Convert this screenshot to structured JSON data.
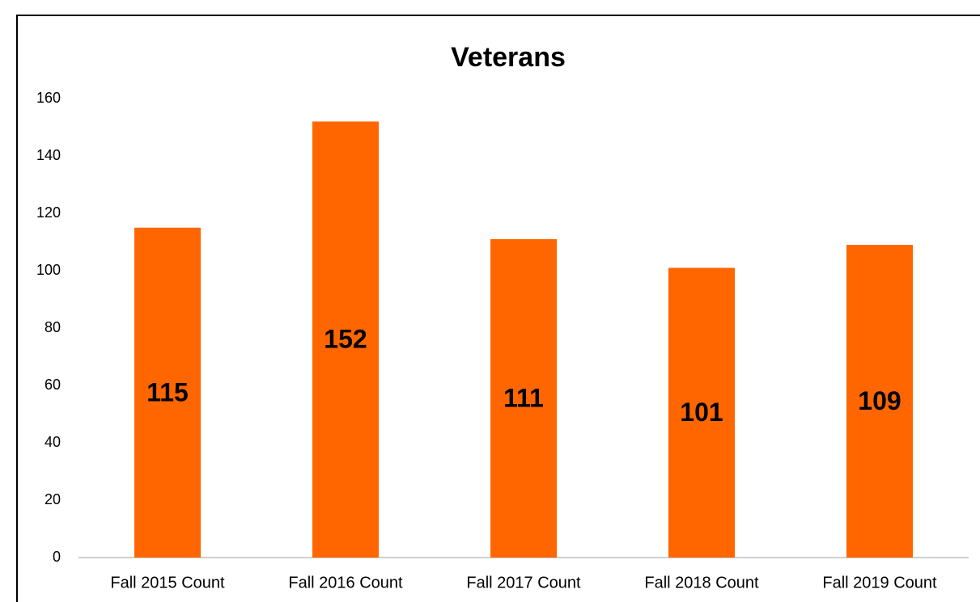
{
  "chart_data": {
    "type": "bar",
    "title": "Veterans",
    "categories": [
      "Fall 2015 Count",
      "Fall 2016 Count",
      "Fall 2017 Count",
      "Fall 2018 Count",
      "Fall 2019 Count"
    ],
    "values": [
      115,
      152,
      111,
      101,
      109
    ],
    "color": "#ff6600",
    "ylim": [
      0,
      160
    ],
    "yticks": [
      0,
      20,
      40,
      60,
      80,
      100,
      120,
      140,
      160
    ],
    "grid": false
  }
}
